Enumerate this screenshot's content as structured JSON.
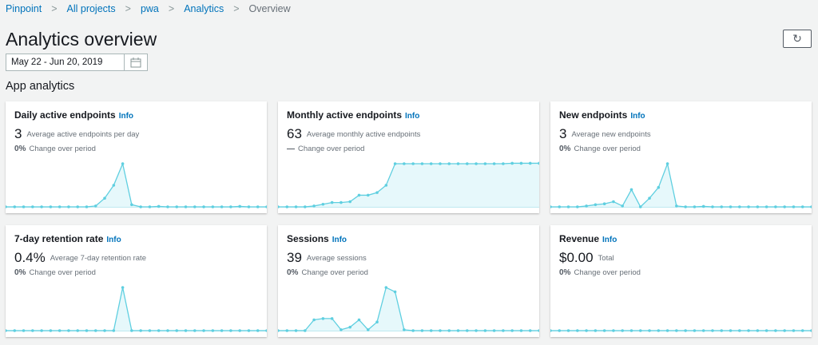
{
  "breadcrumb": [
    "Pinpoint",
    "All projects",
    "pwa",
    "Analytics",
    "Overview"
  ],
  "title": "Analytics overview",
  "refresh_icon": "refresh-icon",
  "date_range": "May 22 - Jun 20, 2019",
  "calendar_icon": "calendar-icon",
  "section": "App analytics",
  "colors": {
    "line": "#5fcfe0",
    "fill": "#e6f8fb",
    "link": "#0073bb"
  },
  "cards": [
    {
      "title": "Daily active endpoints",
      "info": "Info",
      "value": "3",
      "value_label": "Average active endpoints per day",
      "change": "0%",
      "change_label": "Change over period",
      "series": [
        0,
        0,
        0,
        0,
        0,
        0,
        0,
        0,
        0,
        0,
        0.02,
        0.2,
        0.5,
        1,
        0.05,
        0,
        0,
        0.01,
        0,
        0,
        0,
        0,
        0,
        0,
        0,
        0,
        0.01,
        0,
        0,
        0
      ]
    },
    {
      "title": "Monthly active endpoints",
      "info": "Info",
      "value": "63",
      "value_label": "Average monthly active endpoints",
      "change": "—",
      "change_label": "Change over period",
      "series": [
        0,
        0,
        0,
        0,
        0.02,
        0.06,
        0.1,
        0.1,
        0.12,
        0.27,
        0.27,
        0.33,
        0.5,
        1,
        1,
        1,
        1,
        1,
        1,
        1,
        1,
        1,
        1,
        1,
        1,
        1,
        1.01,
        1.01,
        1.01,
        1.01
      ]
    },
    {
      "title": "New endpoints",
      "info": "Info",
      "value": "3",
      "value_label": "Average new endpoints",
      "change": "0%",
      "change_label": "Change over period",
      "series": [
        0,
        0,
        0,
        0,
        0.02,
        0.05,
        0.07,
        0.12,
        0.02,
        0.4,
        0,
        0.2,
        0.45,
        1,
        0.02,
        0,
        0,
        0.01,
        0,
        0,
        0,
        0,
        0,
        0,
        0,
        0,
        0,
        0,
        0,
        0
      ]
    },
    {
      "title": "7-day retention rate",
      "info": "Info",
      "value": "0.4%",
      "value_label": "Average 7-day retention rate",
      "change": "0%",
      "change_label": "Change over period",
      "series": [
        0,
        0,
        0,
        0,
        0,
        0,
        0,
        0,
        0,
        0,
        0,
        0,
        0,
        1,
        0,
        0,
        0,
        0,
        0,
        0,
        0,
        0,
        0,
        0,
        0,
        0,
        0,
        0,
        0,
        0
      ]
    },
    {
      "title": "Sessions",
      "info": "Info",
      "value": "39",
      "value_label": "Average sessions",
      "change": "0%",
      "change_label": "Change over period",
      "series": [
        0,
        0,
        0,
        0,
        0.25,
        0.28,
        0.28,
        0.02,
        0.08,
        0.25,
        0.02,
        0.2,
        1,
        0.9,
        0.02,
        0,
        0,
        0,
        0,
        0,
        0,
        0,
        0,
        0,
        0,
        0,
        0,
        0,
        0,
        0
      ]
    },
    {
      "title": "Revenue",
      "info": "Info",
      "value": "$0.00",
      "value_label": "Total",
      "change": "0%",
      "change_label": "Change over period",
      "series": [
        0,
        0,
        0,
        0,
        0,
        0,
        0,
        0,
        0,
        0,
        0,
        0,
        0,
        0,
        0,
        0,
        0,
        0,
        0,
        0,
        0,
        0,
        0,
        0,
        0,
        0,
        0,
        0,
        0,
        0
      ]
    }
  ]
}
